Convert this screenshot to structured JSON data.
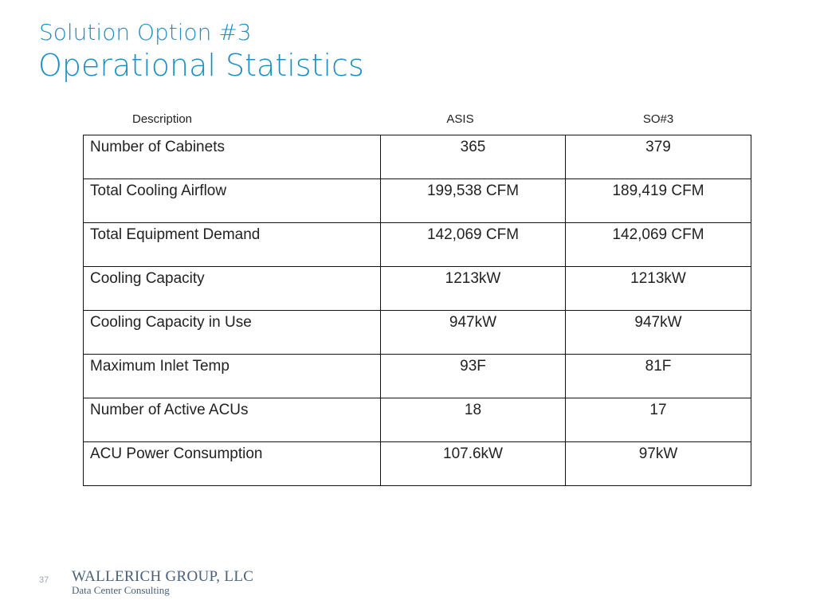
{
  "title": {
    "line1": "Solution Option #3",
    "line2": "Operational Statistics"
  },
  "table": {
    "headers": {
      "description": "Description",
      "asis": "ASIS",
      "so3": "SO#3"
    },
    "rows": [
      {
        "description": "Number of Cabinets",
        "asis": "365",
        "so3": "379"
      },
      {
        "description": "Total Cooling Airflow",
        "asis": "199,538 CFM",
        "so3": "189,419 CFM"
      },
      {
        "description": "Total Equipment Demand",
        "asis": "142,069 CFM",
        "so3": "142,069 CFM"
      },
      {
        "description": "Cooling Capacity",
        "asis": "1213kW",
        "so3": "1213kW"
      },
      {
        "description": "Cooling Capacity in Use",
        "asis": "947kW",
        "so3": "947kW"
      },
      {
        "description": "Maximum Inlet Temp",
        "asis": "93F",
        "so3": "81F"
      },
      {
        "description": "Number of Active ACUs",
        "asis": "18",
        "so3": "17"
      },
      {
        "description": "ACU Power Consumption",
        "asis": "107.6kW",
        "so3": "97kW"
      }
    ]
  },
  "footer": {
    "page_number": "37",
    "company_name": "WALLERICH GROUP, LLC",
    "company_tagline": "Data Center Consulting"
  },
  "colors": {
    "title": "#1a8fc4",
    "logo": "#4a5f78"
  }
}
